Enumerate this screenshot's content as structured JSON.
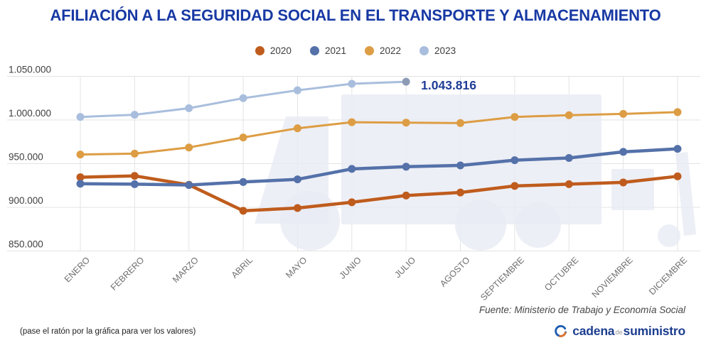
{
  "title": "AFILIACIÓN A LA SEGURIDAD SOCIAL EN EL TRANSPORTE Y ALMACENAMIENTO",
  "colors": {
    "title": "#1839a4",
    "annotation": "#1e3d96",
    "grid": "#e3e3e3",
    "watermark": "#e9ecf4",
    "axis_label": "#3f3f3f",
    "month_label": "#6f6f6f",
    "legend_text": "#3c3c3c",
    "logo_blue": "#1c3d8f",
    "logo_gray": "#9a9a9a",
    "logo_orange": "#e2732c"
  },
  "chart_data": {
    "type": "line",
    "title": "AFILIACIÓN A LA SEGURIDAD SOCIAL EN EL TRANSPORTE Y ALMACENAMIENTO",
    "categories": [
      "ENERO",
      "FEBRERO",
      "MARZO",
      "ABRIL",
      "MAYO",
      "JUNIO",
      "JULIO",
      "AGOSTO",
      "SEPTIEMBRE",
      "OCTUBRE",
      "NOVIEMBRE",
      "DICIEMBRE"
    ],
    "ylim": [
      850000,
      1050000
    ],
    "grid": true,
    "legend_position": "top",
    "y_ticks": [
      {
        "value": 1050000,
        "label": "1.050.000"
      },
      {
        "value": 1000000,
        "label": "1.000.000"
      },
      {
        "value": 950000,
        "label": "950.000"
      },
      {
        "value": 900000,
        "label": "900.000"
      },
      {
        "value": 850000,
        "label": "850.000"
      }
    ],
    "series": [
      {
        "name": "2020",
        "color": "#bf5c1d",
        "line_width": 4.5,
        "values": [
          934500,
          936000,
          925800,
          896000,
          899200,
          905800,
          913500,
          917000,
          924500,
          926500,
          928500,
          935500
        ]
      },
      {
        "name": "2021",
        "color": "#5471a9",
        "line_width": 4.5,
        "values": [
          927000,
          926500,
          925500,
          929000,
          932000,
          944000,
          946500,
          948000,
          954000,
          956500,
          963500,
          967000
        ]
      },
      {
        "name": "2022",
        "color": "#dd9d44",
        "line_width": 3,
        "values": [
          960500,
          961500,
          968500,
          980000,
          990500,
          997500,
          997000,
          996500,
          1003500,
          1005500,
          1007000,
          1009000
        ]
      },
      {
        "name": "2023",
        "color": "#a9bedd",
        "line_width": 3,
        "last_point_color": "#8d9bb5",
        "values": [
          1003500,
          1006000,
          1013500,
          1025000,
          1034000,
          1041500,
          1043816
        ]
      }
    ],
    "annotation": {
      "text": "1.043.816",
      "series": "2023",
      "point_index": 6
    }
  },
  "footer": {
    "source": "Fuente: Ministerio de Trabajo y Economía Social",
    "hint": "(pase el ratón por la gráfica para ver los valores)"
  },
  "logo": {
    "word1": "cadena",
    "word2": "de",
    "word3": "suministro"
  }
}
